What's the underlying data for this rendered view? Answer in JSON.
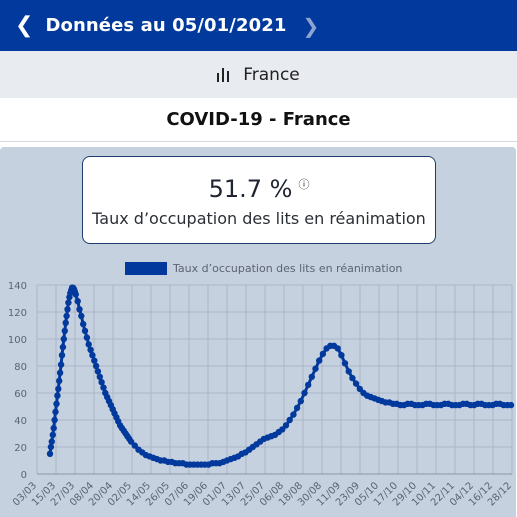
{
  "header": {
    "prev_icon": "chevron-left-icon",
    "title": "Données au 05/01/2021",
    "next_icon": "chevron-right-icon"
  },
  "region": {
    "icon": "bar-chart-icon",
    "label": "France"
  },
  "page_title": "COVID-19 - France",
  "card": {
    "value": "51.7 %",
    "info_icon": "info-icon",
    "label": "Taux d’occupation des lits en réanimation"
  },
  "colors": {
    "header_bg": "#02399d",
    "series": "#02399d",
    "panel_bg": "#c6d1df"
  },
  "chart_data": {
    "type": "line",
    "legend": "Taux d’occupation des lits en réanimation",
    "ylim": [
      0,
      140
    ],
    "y_ticks": [
      0,
      20,
      40,
      60,
      80,
      100,
      120,
      140
    ],
    "x_tick_labels": [
      "03/03",
      "15/03",
      "27/03",
      "08/04",
      "20/04",
      "02/05",
      "14/05",
      "26/05",
      "07/06",
      "19/06",
      "01/07",
      "13/07",
      "25/07",
      "06/08",
      "18/08",
      "30/08",
      "11/09",
      "23/09",
      "05/10",
      "17/10",
      "29/10",
      "10/11",
      "22/11",
      "04/12",
      "16/12",
      "28/12"
    ],
    "series": [
      {
        "x": [
          12,
          13,
          14,
          15,
          16,
          17,
          18,
          19,
          20,
          21,
          22,
          23,
          24,
          25,
          26,
          27,
          28,
          29,
          30,
          31,
          32,
          33,
          34,
          35,
          36,
          37,
          38,
          39,
          40,
          42,
          44,
          46,
          48,
          50,
          52,
          54,
          56,
          58,
          60,
          62,
          64,
          66,
          68,
          70,
          72,
          74,
          76,
          78,
          80,
          82,
          84,
          86,
          88,
          90,
          92,
          94,
          96,
          98,
          100,
          104,
          108,
          112,
          116,
          120,
          124,
          128,
          132,
          136,
          140,
          144,
          148,
          152,
          156,
          160,
          164,
          168,
          172,
          176,
          180,
          184,
          188,
          192,
          196,
          200,
          204,
          208,
          212,
          216,
          220,
          224,
          228,
          232,
          236,
          240,
          244,
          248,
          252,
          256,
          260,
          264,
          268,
          272,
          276,
          280,
          284,
          288,
          292,
          296,
          300,
          304,
          308,
          312,
          316,
          320,
          324,
          328,
          332,
          336,
          340,
          344,
          348,
          352,
          356,
          360,
          364,
          368,
          372,
          376,
          380,
          384,
          388,
          392,
          396,
          400,
          404,
          408,
          412,
          416,
          420,
          424,
          428,
          432,
          436,
          440,
          444,
          448,
          452,
          456,
          460,
          464,
          468,
          472,
          476,
          480,
          484,
          488,
          492,
          496,
          500,
          504,
          508,
          512
        ],
        "y": [
          15,
          20,
          24,
          29,
          34,
          40,
          46,
          52,
          58,
          63,
          69,
          75,
          81,
          88,
          94,
          100,
          106,
          112,
          117,
          122,
          127,
          131,
          134,
          136,
          138,
          138,
          137,
          135,
          133,
          128,
          122,
          117,
          111,
          106,
          101,
          96,
          92,
          88,
          84,
          80,
          76,
          72,
          68,
          64,
          60,
          57,
          54,
          51,
          48,
          45,
          42,
          39,
          36,
          34,
          32,
          30,
          28,
          26,
          24,
          21,
          18,
          16,
          14,
          13,
          12,
          11,
          10,
          10,
          9,
          9,
          8,
          8,
          8,
          7,
          7,
          7,
          7,
          7,
          7,
          7,
          8,
          8,
          8,
          9,
          10,
          11,
          12,
          13,
          15,
          16,
          18,
          20,
          22,
          24,
          26,
          27,
          28,
          29,
          31,
          33,
          36,
          40,
          44,
          49,
          54,
          60,
          66,
          72,
          78,
          84,
          89,
          93,
          95,
          95,
          93,
          88,
          82,
          76,
          71,
          67,
          63,
          60,
          58,
          57,
          56,
          55,
          54,
          53,
          53,
          52,
          52,
          51,
          51,
          52,
          52,
          51,
          51,
          51,
          52,
          52,
          51,
          51,
          51,
          52,
          52,
          51,
          51,
          51,
          52,
          52,
          51,
          51,
          52,
          52,
          51,
          51,
          51,
          52,
          52,
          51,
          51,
          51
        ]
      }
    ]
  }
}
